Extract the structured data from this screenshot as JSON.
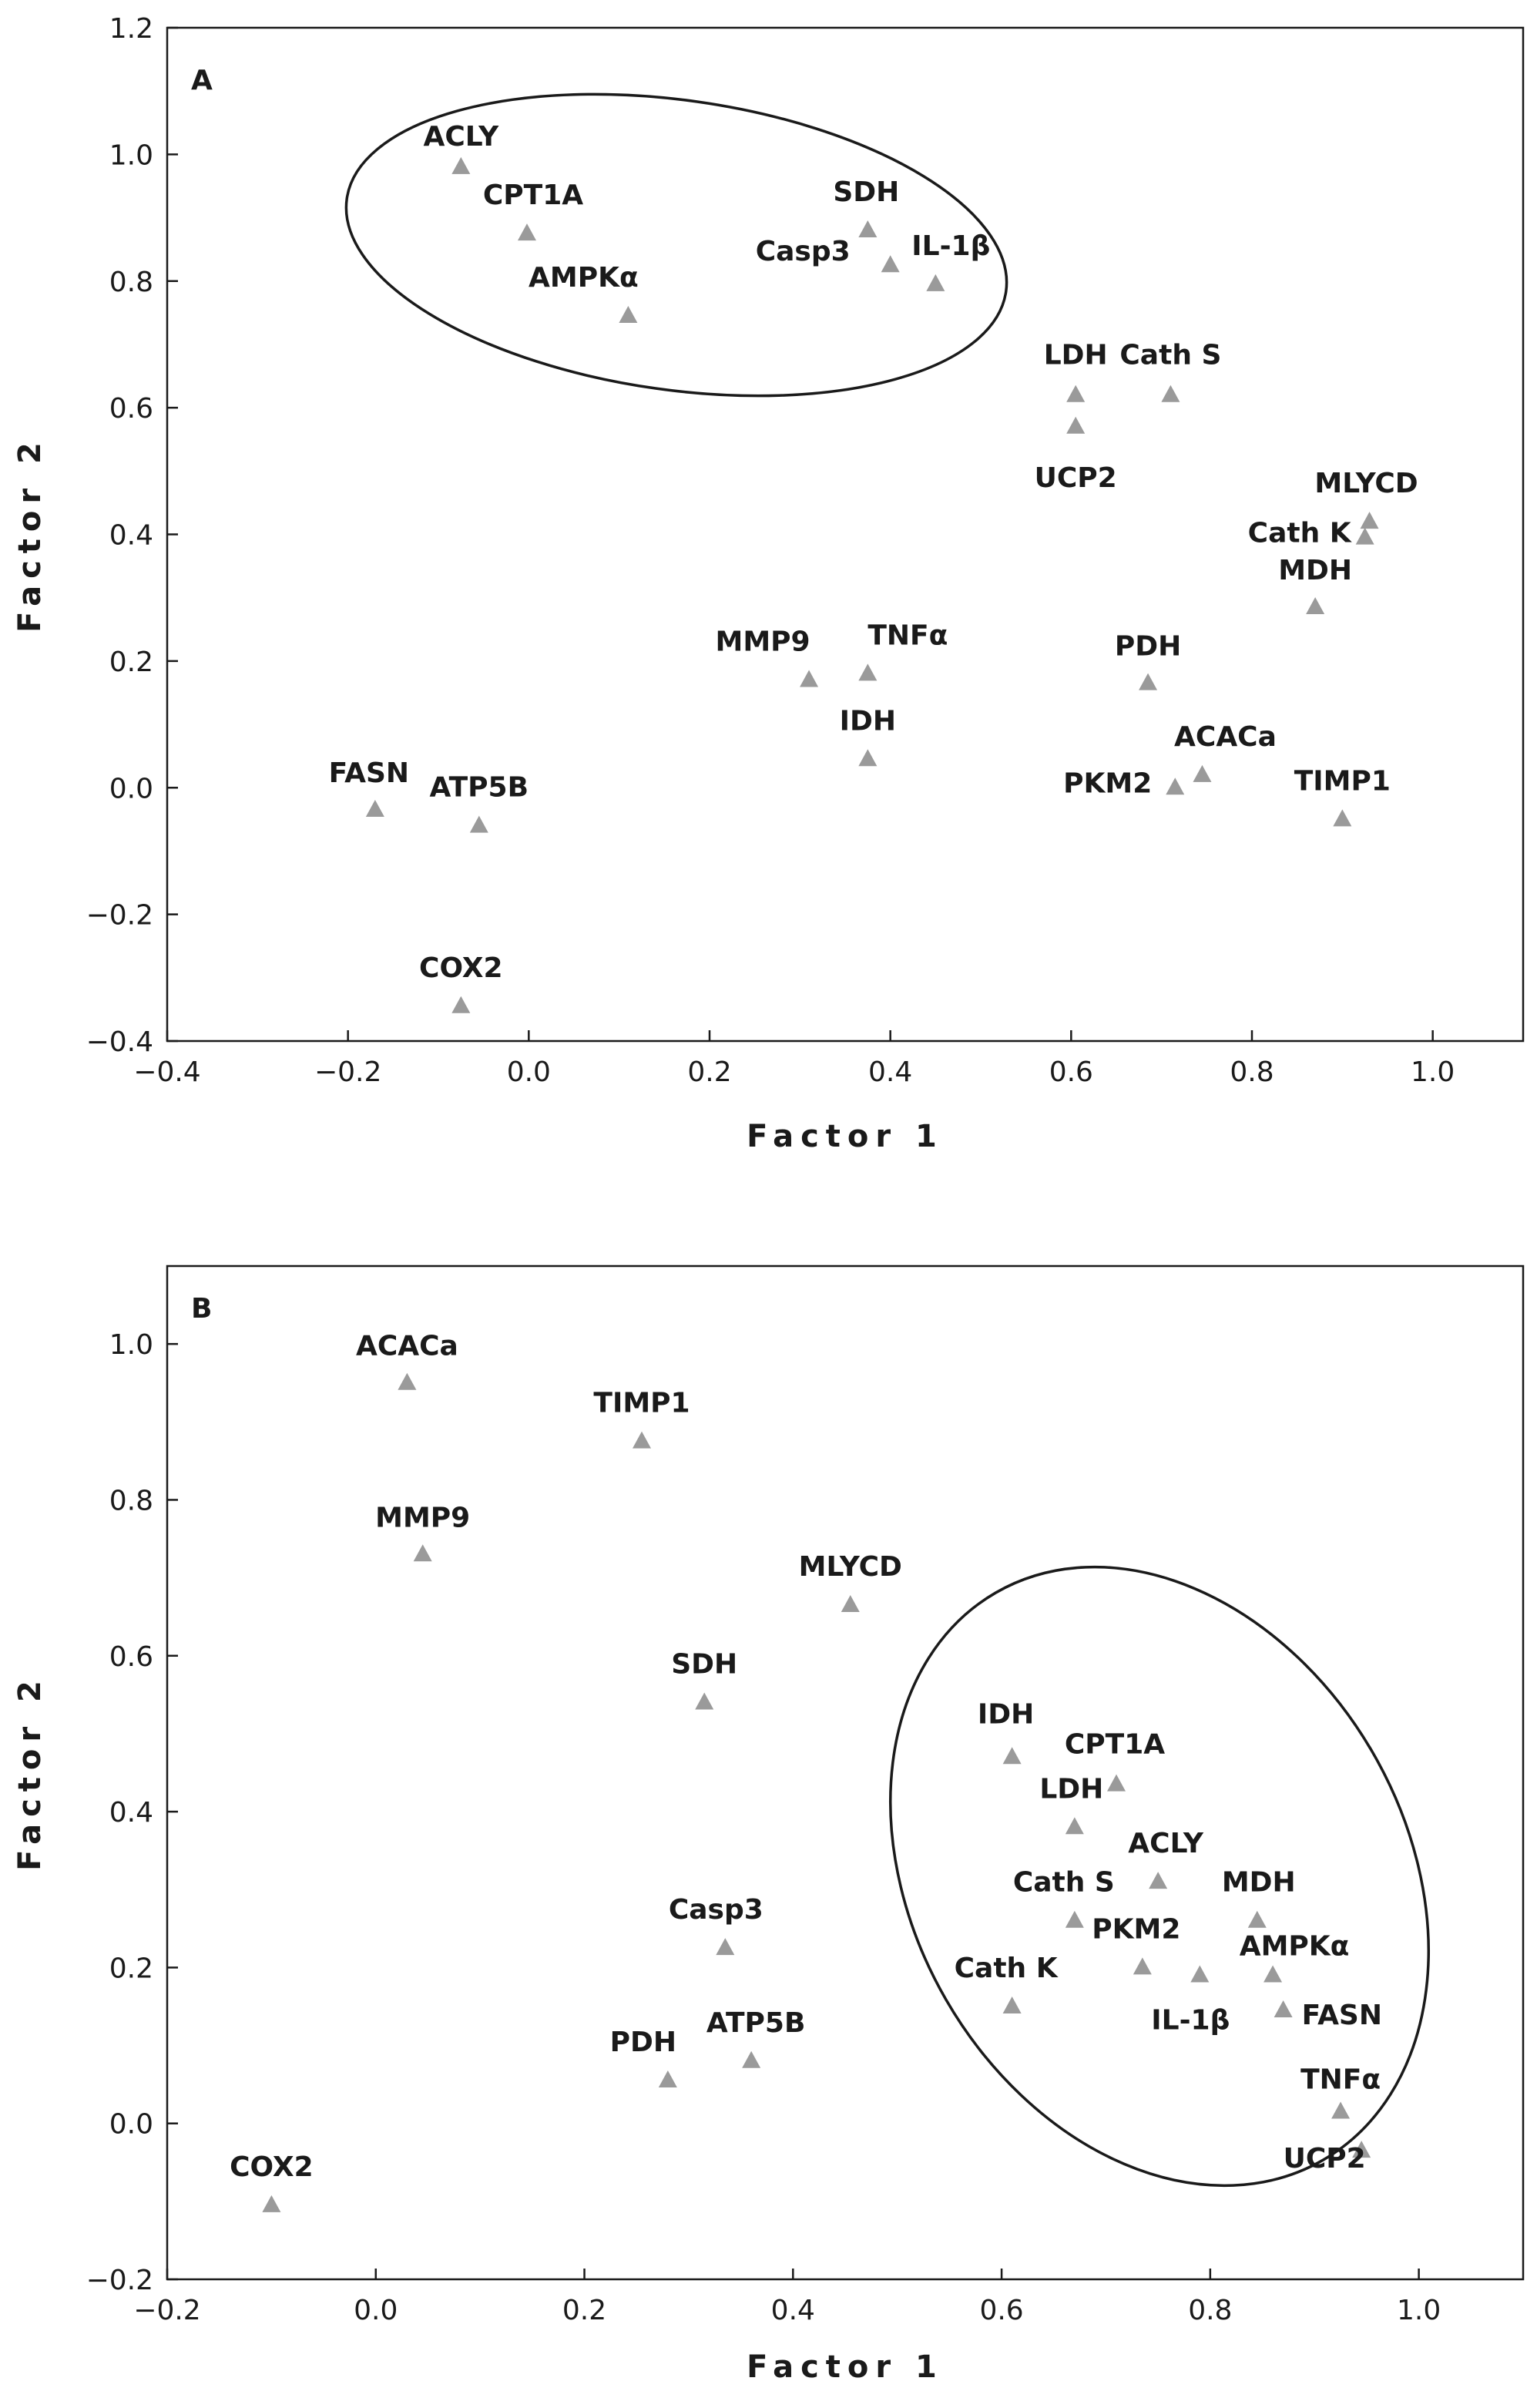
{
  "chart_data": [
    {
      "type": "scatter",
      "panel": "A",
      "xlabel": "Factor 1",
      "ylabel": "Factor 2",
      "xlim": [
        -0.4,
        1.1
      ],
      "ylim": [
        -0.4,
        1.2
      ],
      "xticks": [
        "−0.4",
        "−0.2",
        "0.0",
        "0.2",
        "0.4",
        "0.6",
        "0.8",
        "1.0"
      ],
      "yticks": [
        "−0.4",
        "−0.2",
        "0.0",
        "0.2",
        "0.4",
        "0.6",
        "0.8",
        "1.0",
        "1.2"
      ],
      "points": [
        {
          "label": "ACLY",
          "x": -0.075,
          "y": 0.98
        },
        {
          "label": "CPT1A",
          "x": -0.002,
          "y": 0.875
        },
        {
          "label": "AMPKα",
          "x": 0.11,
          "y": 0.745
        },
        {
          "label": "SDH",
          "x": 0.375,
          "y": 0.88
        },
        {
          "label": "Casp3",
          "x": 0.4,
          "y": 0.825
        },
        {
          "label": "IL-1β",
          "x": 0.45,
          "y": 0.795
        },
        {
          "label": "LDH",
          "x": 0.605,
          "y": 0.62
        },
        {
          "label": "UCP2",
          "x": 0.605,
          "y": 0.57
        },
        {
          "label": "Cath S",
          "x": 0.71,
          "y": 0.62
        },
        {
          "label": "MLYCD",
          "x": 0.93,
          "y": 0.42
        },
        {
          "label": "Cath K",
          "x": 0.925,
          "y": 0.395
        },
        {
          "label": "MDH",
          "x": 0.87,
          "y": 0.285
        },
        {
          "label": "MMP9",
          "x": 0.31,
          "y": 0.17
        },
        {
          "label": "TNFα",
          "x": 0.375,
          "y": 0.18
        },
        {
          "label": "PDH",
          "x": 0.685,
          "y": 0.165
        },
        {
          "label": "IDH",
          "x": 0.375,
          "y": 0.045
        },
        {
          "label": "ACACa",
          "x": 0.745,
          "y": 0.02
        },
        {
          "label": "PKM2",
          "x": 0.715,
          "y": 0.0
        },
        {
          "label": "TIMP1",
          "x": 0.9,
          "y": -0.05
        },
        {
          "label": "FASN",
          "x": -0.17,
          "y": -0.035
        },
        {
          "label": "ATP5B",
          "x": -0.055,
          "y": -0.06
        },
        {
          "label": "COX2",
          "x": -0.075,
          "y": -0.345
        }
      ],
      "cluster": [
        "ACLY",
        "CPT1A",
        "AMPKα",
        "SDH",
        "Casp3",
        "IL-1β"
      ]
    },
    {
      "type": "scatter",
      "panel": "B",
      "xlabel": "Factor 1",
      "ylabel": "Factor 2",
      "xlim": [
        -0.2,
        1.1
      ],
      "ylim": [
        -0.2,
        1.1
      ],
      "xticks": [
        "−0.2",
        "0.0",
        "0.2",
        "0.4",
        "0.6",
        "0.8",
        "1.0"
      ],
      "yticks": [
        "−0.2",
        "0.0",
        "0.2",
        "0.4",
        "0.6",
        "0.8",
        "1.0"
      ],
      "points": [
        {
          "label": "ACACa",
          "x": 0.03,
          "y": 0.95
        },
        {
          "label": "TIMP1",
          "x": 0.255,
          "y": 0.875
        },
        {
          "label": "MMP9",
          "x": 0.045,
          "y": 0.73
        },
        {
          "label": "MLYCD",
          "x": 0.455,
          "y": 0.665
        },
        {
          "label": "SDH",
          "x": 0.315,
          "y": 0.54
        },
        {
          "label": "IDH",
          "x": 0.61,
          "y": 0.47
        },
        {
          "label": "CPT1A",
          "x": 0.71,
          "y": 0.435
        },
        {
          "label": "LDH",
          "x": 0.67,
          "y": 0.38
        },
        {
          "label": "ACLY",
          "x": 0.75,
          "y": 0.31
        },
        {
          "label": "Cath S",
          "x": 0.67,
          "y": 0.26
        },
        {
          "label": "MDH",
          "x": 0.845,
          "y": 0.26
        },
        {
          "label": "Casp3",
          "x": 0.335,
          "y": 0.225
        },
        {
          "label": "PKM2",
          "x": 0.735,
          "y": 0.2
        },
        {
          "label": "AMPKα",
          "x": 0.86,
          "y": 0.19
        },
        {
          "label": "IL-1β",
          "x": 0.79,
          "y": 0.19
        },
        {
          "label": "Cath K",
          "x": 0.61,
          "y": 0.15
        },
        {
          "label": "FASN",
          "x": 0.87,
          "y": 0.145
        },
        {
          "label": "ATP5B",
          "x": 0.36,
          "y": 0.08
        },
        {
          "label": "PDH",
          "x": 0.28,
          "y": 0.055
        },
        {
          "label": "TNFα",
          "x": 0.925,
          "y": 0.015
        },
        {
          "label": "UCP2",
          "x": 0.945,
          "y": -0.035
        },
        {
          "label": "COX2",
          "x": -0.1,
          "y": -0.105
        }
      ],
      "cluster": [
        "IDH",
        "CPT1A",
        "LDH",
        "ACLY",
        "Cath S",
        "MDH",
        "PKM2",
        "AMPKα",
        "IL-1β",
        "Cath K",
        "FASN",
        "TNFα",
        "UCP2"
      ]
    }
  ]
}
